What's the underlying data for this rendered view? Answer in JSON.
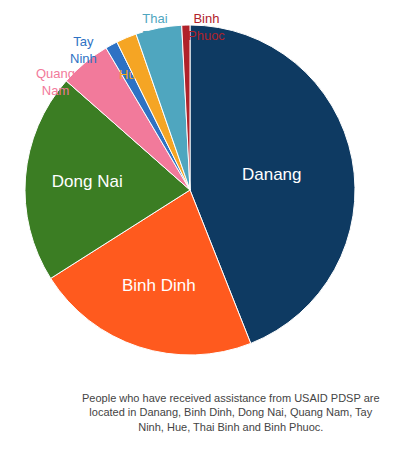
{
  "chart_data": {
    "type": "pie",
    "categories": [
      "Danang",
      "Binh Dinh",
      "Dong Nai",
      "Quang Nam",
      "Tay Ninh",
      "Hue",
      "Thai Binh",
      "Binh Phuoc"
    ],
    "values": [
      44,
      22,
      20.5,
      5,
      1.2,
      2,
      4.5,
      0.8
    ],
    "colors": [
      "#0e3a62",
      "#ff5a1e",
      "#3b7d23",
      "#f27a9b",
      "#2e72c4",
      "#f5a524",
      "#4fa6bf",
      "#b0222a"
    ],
    "annotations": [
      "People who have received assistance from USAID PDSP are located in Danang, Binh Dinh, Dong Nai, Quang Nam, Tay Ninh, Hue, Thai Binh and Binh Phuoc."
    ],
    "legend": false
  }
}
